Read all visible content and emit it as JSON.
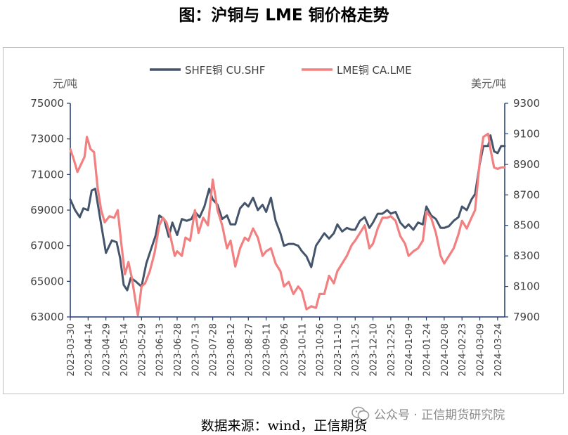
{
  "page": {
    "title": "图：沪铜与 LME 铜价格走势",
    "source": "数据来源：wind，正信期货",
    "watermark": "公众号 · 正信期货研究院"
  },
  "chart_data": {
    "type": "line",
    "title": "图：沪铜与 LME 铜价格走势",
    "legend_position": "top-center",
    "grid": false,
    "left_axis": {
      "label": "元/吨",
      "min": 63000,
      "max": 75000,
      "ticks": [
        "75000",
        "73000",
        "71000",
        "69000",
        "67000",
        "65000",
        "63000"
      ]
    },
    "right_axis": {
      "label": "美元/吨",
      "min": 7900,
      "max": 9300,
      "ticks": [
        "9300",
        "9100",
        "8900",
        "8700",
        "8500",
        "8300",
        "8100",
        "7900"
      ]
    },
    "x_tick_labels": [
      "2023-03-30",
      "2023-04-14",
      "2023-04-29",
      "2023-05-14",
      "2023-05-29",
      "2023-06-13",
      "2023-06-28",
      "2023-07-13",
      "2023-07-28",
      "2023-08-12",
      "2023-08-27",
      "2023-09-11",
      "2023-09-26",
      "2023-10-11",
      "2023-10-26",
      "2023-11-10",
      "2023-11-25",
      "2023-12-10",
      "2023-12-25",
      "2024-01-09",
      "2024-01-24",
      "2024-02-08",
      "2024-02-23",
      "2024-03-09",
      "2024-03-24"
    ],
    "x_range": [
      "2023-03-30",
      "2024-03-30"
    ],
    "series": [
      {
        "name": "SHFE铜 CU.SHF",
        "axis": "left",
        "color": "#44546a",
        "points": [
          [
            "2023-03-30",
            69600
          ],
          [
            "2023-04-03",
            69000
          ],
          [
            "2023-04-07",
            68600
          ],
          [
            "2023-04-10",
            69100
          ],
          [
            "2023-04-14",
            69000
          ],
          [
            "2023-04-17",
            70100
          ],
          [
            "2023-04-20",
            70200
          ],
          [
            "2023-04-24",
            68600
          ],
          [
            "2023-04-27",
            67400
          ],
          [
            "2023-04-29",
            66600
          ],
          [
            "2023-05-04",
            67300
          ],
          [
            "2023-05-08",
            67200
          ],
          [
            "2023-05-11",
            66300
          ],
          [
            "2023-05-14",
            64800
          ],
          [
            "2023-05-17",
            64500
          ],
          [
            "2023-05-20",
            65200
          ],
          [
            "2023-05-24",
            65000
          ],
          [
            "2023-05-29",
            64700
          ],
          [
            "2023-06-02",
            66000
          ],
          [
            "2023-06-06",
            66800
          ],
          [
            "2023-06-10",
            67600
          ],
          [
            "2023-06-13",
            68700
          ],
          [
            "2023-06-17",
            68500
          ],
          [
            "2023-06-21",
            67500
          ],
          [
            "2023-06-24",
            68300
          ],
          [
            "2023-06-28",
            67600
          ],
          [
            "2023-07-02",
            68500
          ],
          [
            "2023-07-06",
            68400
          ],
          [
            "2023-07-10",
            68500
          ],
          [
            "2023-07-13",
            68900
          ],
          [
            "2023-07-17",
            68600
          ],
          [
            "2023-07-21",
            69200
          ],
          [
            "2023-07-25",
            70200
          ],
          [
            "2023-07-28",
            69600
          ],
          [
            "2023-08-01",
            69300
          ],
          [
            "2023-08-05",
            68500
          ],
          [
            "2023-08-09",
            68700
          ],
          [
            "2023-08-12",
            68200
          ],
          [
            "2023-08-16",
            68200
          ],
          [
            "2023-08-20",
            69100
          ],
          [
            "2023-08-24",
            69400
          ],
          [
            "2023-08-27",
            69200
          ],
          [
            "2023-08-31",
            69700
          ],
          [
            "2023-09-04",
            69000
          ],
          [
            "2023-09-08",
            69300
          ],
          [
            "2023-09-11",
            68900
          ],
          [
            "2023-09-15",
            69700
          ],
          [
            "2023-09-19",
            68400
          ],
          [
            "2023-09-23",
            67700
          ],
          [
            "2023-09-26",
            67000
          ],
          [
            "2023-09-30",
            67100
          ],
          [
            "2023-10-04",
            67100
          ],
          [
            "2023-10-08",
            67000
          ],
          [
            "2023-10-11",
            66700
          ],
          [
            "2023-10-15",
            66400
          ],
          [
            "2023-10-19",
            65800
          ],
          [
            "2023-10-23",
            67000
          ],
          [
            "2023-10-26",
            67300
          ],
          [
            "2023-10-30",
            67700
          ],
          [
            "2023-11-03",
            67400
          ],
          [
            "2023-11-07",
            67700
          ],
          [
            "2023-11-10",
            68200
          ],
          [
            "2023-11-14",
            67800
          ],
          [
            "2023-11-18",
            68000
          ],
          [
            "2023-11-22",
            67900
          ],
          [
            "2023-11-25",
            67900
          ],
          [
            "2023-11-29",
            68400
          ],
          [
            "2023-12-03",
            68600
          ],
          [
            "2023-12-07",
            68000
          ],
          [
            "2023-12-10",
            68300
          ],
          [
            "2023-12-14",
            68800
          ],
          [
            "2023-12-18",
            68800
          ],
          [
            "2023-12-22",
            69000
          ],
          [
            "2023-12-25",
            68800
          ],
          [
            "2023-12-29",
            68900
          ],
          [
            "2024-01-02",
            68300
          ],
          [
            "2024-01-06",
            68000
          ],
          [
            "2024-01-09",
            68200
          ],
          [
            "2024-01-13",
            67900
          ],
          [
            "2024-01-17",
            68300
          ],
          [
            "2024-01-21",
            68200
          ],
          [
            "2024-01-24",
            69200
          ],
          [
            "2024-01-28",
            68700
          ],
          [
            "2024-02-01",
            68500
          ],
          [
            "2024-02-05",
            68000
          ],
          [
            "2024-02-08",
            68000
          ],
          [
            "2024-02-12",
            68100
          ],
          [
            "2024-02-16",
            68400
          ],
          [
            "2024-02-20",
            68600
          ],
          [
            "2024-02-23",
            69200
          ],
          [
            "2024-02-27",
            69000
          ],
          [
            "2024-03-02",
            69600
          ],
          [
            "2024-03-05",
            69900
          ],
          [
            "2024-03-09",
            71600
          ],
          [
            "2024-03-12",
            72600
          ],
          [
            "2024-03-16",
            72600
          ],
          [
            "2024-03-18",
            73200
          ],
          [
            "2024-03-21",
            72300
          ],
          [
            "2024-03-24",
            72200
          ],
          [
            "2024-03-27",
            72600
          ],
          [
            "2024-03-30",
            72600
          ]
        ]
      },
      {
        "name": "LME铜 CA.LME",
        "axis": "right",
        "color": "#f28080",
        "points": [
          [
            "2023-03-30",
            9000
          ],
          [
            "2023-04-02",
            8930
          ],
          [
            "2023-04-05",
            8850
          ],
          [
            "2023-04-08",
            8900
          ],
          [
            "2023-04-11",
            8950
          ],
          [
            "2023-04-13",
            9080
          ],
          [
            "2023-04-16",
            9000
          ],
          [
            "2023-04-19",
            8980
          ],
          [
            "2023-04-22",
            8750
          ],
          [
            "2023-04-25",
            8600
          ],
          [
            "2023-04-28",
            8520
          ],
          [
            "2023-05-02",
            8560
          ],
          [
            "2023-05-06",
            8550
          ],
          [
            "2023-05-09",
            8600
          ],
          [
            "2023-05-12",
            8380
          ],
          [
            "2023-05-15",
            8180
          ],
          [
            "2023-05-18",
            8260
          ],
          [
            "2023-05-21",
            8150
          ],
          [
            "2023-05-24",
            8000
          ],
          [
            "2023-05-26",
            7910
          ],
          [
            "2023-05-29",
            8100
          ],
          [
            "2023-06-01",
            8120
          ],
          [
            "2023-06-05",
            8200
          ],
          [
            "2023-06-09",
            8320
          ],
          [
            "2023-06-13",
            8500
          ],
          [
            "2023-06-16",
            8550
          ],
          [
            "2023-06-19",
            8520
          ],
          [
            "2023-06-22",
            8440
          ],
          [
            "2023-06-26",
            8300
          ],
          [
            "2023-06-28",
            8330
          ],
          [
            "2023-07-02",
            8300
          ],
          [
            "2023-07-05",
            8420
          ],
          [
            "2023-07-09",
            8400
          ],
          [
            "2023-07-13",
            8600
          ],
          [
            "2023-07-16",
            8450
          ],
          [
            "2023-07-20",
            8550
          ],
          [
            "2023-07-24",
            8500
          ],
          [
            "2023-07-28",
            8800
          ],
          [
            "2023-08-01",
            8600
          ],
          [
            "2023-08-05",
            8500
          ],
          [
            "2023-08-09",
            8350
          ],
          [
            "2023-08-12",
            8400
          ],
          [
            "2023-08-16",
            8230
          ],
          [
            "2023-08-20",
            8350
          ],
          [
            "2023-08-24",
            8420
          ],
          [
            "2023-08-27",
            8400
          ],
          [
            "2023-08-31",
            8480
          ],
          [
            "2023-09-04",
            8420
          ],
          [
            "2023-09-08",
            8300
          ],
          [
            "2023-09-11",
            8330
          ],
          [
            "2023-09-15",
            8350
          ],
          [
            "2023-09-19",
            8250
          ],
          [
            "2023-09-23",
            8200
          ],
          [
            "2023-09-26",
            8100
          ],
          [
            "2023-09-30",
            8130
          ],
          [
            "2023-10-04",
            8050
          ],
          [
            "2023-10-08",
            8100
          ],
          [
            "2023-10-11",
            8070
          ],
          [
            "2023-10-15",
            7950
          ],
          [
            "2023-10-19",
            7970
          ],
          [
            "2023-10-23",
            7960
          ],
          [
            "2023-10-26",
            8050
          ],
          [
            "2023-10-30",
            8050
          ],
          [
            "2023-11-03",
            8170
          ],
          [
            "2023-11-07",
            8120
          ],
          [
            "2023-11-10",
            8200
          ],
          [
            "2023-11-14",
            8250
          ],
          [
            "2023-11-18",
            8300
          ],
          [
            "2023-11-22",
            8370
          ],
          [
            "2023-11-25",
            8400
          ],
          [
            "2023-11-29",
            8450
          ],
          [
            "2023-12-03",
            8500
          ],
          [
            "2023-12-07",
            8350
          ],
          [
            "2023-12-10",
            8380
          ],
          [
            "2023-12-14",
            8480
          ],
          [
            "2023-12-18",
            8550
          ],
          [
            "2023-12-22",
            8550
          ],
          [
            "2023-12-25",
            8560
          ],
          [
            "2023-12-29",
            8530
          ],
          [
            "2024-01-02",
            8430
          ],
          [
            "2024-01-06",
            8380
          ],
          [
            "2024-01-09",
            8300
          ],
          [
            "2024-01-13",
            8330
          ],
          [
            "2024-01-17",
            8350
          ],
          [
            "2024-01-21",
            8400
          ],
          [
            "2024-01-24",
            8590
          ],
          [
            "2024-01-28",
            8550
          ],
          [
            "2024-02-01",
            8450
          ],
          [
            "2024-02-05",
            8300
          ],
          [
            "2024-02-08",
            8250
          ],
          [
            "2024-02-12",
            8300
          ],
          [
            "2024-02-16",
            8350
          ],
          [
            "2024-02-20",
            8440
          ],
          [
            "2024-02-23",
            8530
          ],
          [
            "2024-02-27",
            8480
          ],
          [
            "2024-03-02",
            8550
          ],
          [
            "2024-03-05",
            8600
          ],
          [
            "2024-03-09",
            8920
          ],
          [
            "2024-03-12",
            9080
          ],
          [
            "2024-03-16",
            9100
          ],
          [
            "2024-03-18",
            9000
          ],
          [
            "2024-03-21",
            8880
          ],
          [
            "2024-03-24",
            8870
          ],
          [
            "2024-03-27",
            8880
          ],
          [
            "2024-03-30",
            8880
          ]
        ]
      }
    ]
  }
}
